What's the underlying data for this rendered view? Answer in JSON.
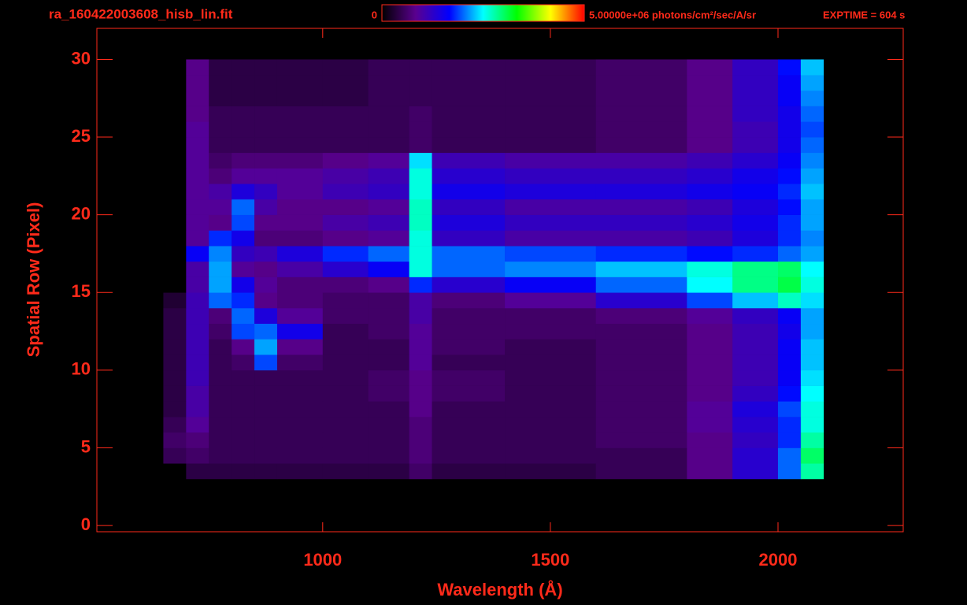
{
  "chart_data": {
    "type": "heatmap",
    "title": "ra_160422003608_hisb_lin.fit",
    "annotation": "EXPTIME = 604 s",
    "xlabel": "Wavelength (Å)",
    "ylabel": "Spatial Row (Pixel)",
    "xlim": [
      504,
      2275
    ],
    "xticks": [
      1000,
      1500,
      2000
    ],
    "ylim": [
      -0.4,
      32
    ],
    "yticks": [
      0,
      5,
      10,
      15,
      20,
      25,
      30
    ],
    "zlim": [
      0,
      5000000
    ],
    "zticks": [
      0,
      {
        "value": 5000000,
        "label": "5.00000e+06 photons/cm²/sec/A/sr"
      }
    ],
    "colorscale": [
      "#000000",
      "#5a008f",
      "#0000ff",
      "#00ffff",
      "#00ff00",
      "#ffff00",
      "#ff0000"
    ],
    "xbins": [
      650,
      700,
      750,
      800,
      850,
      900,
      1000,
      1100,
      1190,
      1240,
      1400,
      1600,
      1800,
      1900,
      2000,
      2050,
      2100
    ],
    "ybins": [
      3,
      4,
      5,
      6,
      7,
      8,
      9,
      10,
      11,
      12,
      13,
      14,
      15,
      16,
      17,
      18,
      19,
      20,
      21,
      22,
      23,
      24,
      25,
      26,
      27,
      28,
      29,
      30
    ],
    "z": [
      [
        0,
        400000.0,
        400000.0,
        400000.0,
        400000.0,
        400000.0,
        400000.0,
        400000.0,
        600000.0,
        400000.0,
        400000.0,
        500000.0,
        800000.0,
        1300000.0,
        2000000.0,
        2800000.0
      ],
      [
        500000.0,
        600000.0,
        500000.0,
        500000.0,
        500000.0,
        500000.0,
        500000.0,
        500000.0,
        700000.0,
        500000.0,
        500000.0,
        500000.0,
        800000.0,
        1300000.0,
        2000000.0,
        3000000.0
      ],
      [
        600000.0,
        700000.0,
        500000.0,
        500000.0,
        500000.0,
        500000.0,
        500000.0,
        500000.0,
        700000.0,
        500000.0,
        500000.0,
        600000.0,
        800000.0,
        1200000.0,
        1800000.0,
        2800000.0
      ],
      [
        500000.0,
        900000.0,
        500000.0,
        500000.0,
        500000.0,
        500000.0,
        500000.0,
        500000.0,
        700000.0,
        500000.0,
        500000.0,
        600000.0,
        900000.0,
        1300000.0,
        1800000.0,
        2600000.0
      ],
      [
        400000.0,
        1000000.0,
        500000.0,
        500000.0,
        500000.0,
        500000.0,
        500000.0,
        500000.0,
        800000.0,
        500000.0,
        500000.0,
        600000.0,
        900000.0,
        1400000.0,
        1900000.0,
        2600000.0
      ],
      [
        400000.0,
        1000000.0,
        500000.0,
        500000.0,
        500000.0,
        500000.0,
        500000.0,
        600000.0,
        800000.0,
        600000.0,
        500000.0,
        600000.0,
        800000.0,
        1200000.0,
        1700000.0,
        2500000.0
      ],
      [
        400000.0,
        1100000.0,
        500000.0,
        500000.0,
        500000.0,
        500000.0,
        500000.0,
        600000.0,
        800000.0,
        600000.0,
        500000.0,
        600000.0,
        800000.0,
        1100000.0,
        1600000.0,
        2400000.0
      ],
      [
        400000.0,
        1100000.0,
        500000.0,
        600000.0,
        1900000.0,
        600000.0,
        500000.0,
        500000.0,
        900000.0,
        500000.0,
        500000.0,
        600000.0,
        800000.0,
        1100000.0,
        1600000.0,
        2300000.0
      ],
      [
        400000.0,
        1100000.0,
        500000.0,
        800000.0,
        2200000.0,
        800000.0,
        500000.0,
        500000.0,
        900000.0,
        600000.0,
        500000.0,
        600000.0,
        800000.0,
        1100000.0,
        1600000.0,
        2300000.0
      ],
      [
        400000.0,
        1100000.0,
        600000.0,
        1900000.0,
        2000000.0,
        1500000.0,
        500000.0,
        600000.0,
        900000.0,
        600000.0,
        600000.0,
        600000.0,
        800000.0,
        1100000.0,
        1500000.0,
        2200000.0
      ],
      [
        400000.0,
        1100000.0,
        700000.0,
        2000000.0,
        1400000.0,
        900000.0,
        600000.0,
        600000.0,
        1000000.0,
        600000.0,
        600000.0,
        700000.0,
        900000.0,
        1200000.0,
        1600000.0,
        2200000.0
      ],
      [
        300000.0,
        1100000.0,
        2000000.0,
        1800000.0,
        800000.0,
        700000.0,
        600000.0,
        600000.0,
        1000000.0,
        700000.0,
        900000.0,
        1300000.0,
        1900000.0,
        2300000.0,
        2700000.0,
        2400000.0
      ],
      [
        0,
        1000000.0,
        2200000.0,
        1500000.0,
        900000.0,
        700000.0,
        700000.0,
        800000.0,
        1800000.0,
        1300000.0,
        1600000.0,
        2000000.0,
        2500000.0,
        2900000.0,
        3100000.0,
        2600000.0
      ],
      [
        0,
        1000000.0,
        2200000.0,
        900000.0,
        800000.0,
        1000000.0,
        1300000.0,
        1600000.0,
        2600000.0,
        2000000.0,
        2100000.0,
        2300000.0,
        2600000.0,
        2900000.0,
        3000000.0,
        2500000.0
      ],
      [
        0,
        1600000.0,
        2100000.0,
        1200000.0,
        1100000.0,
        1400000.0,
        1800000.0,
        2000000.0,
        2600000.0,
        2000000.0,
        1900000.0,
        1800000.0,
        1700000.0,
        1800000.0,
        2000000.0,
        2200000.0
      ],
      [
        0,
        900000.0,
        1800000.0,
        1500000.0,
        700000.0,
        700000.0,
        800000.0,
        900000.0,
        2600000.0,
        1200000.0,
        1000000.0,
        1000000.0,
        1100000.0,
        1400000.0,
        1800000.0,
        2100000.0
      ],
      [
        0,
        900000.0,
        800000.0,
        1900000.0,
        800000.0,
        800000.0,
        1000000.0,
        1100000.0,
        2700000.0,
        1400000.0,
        1200000.0,
        1200000.0,
        1300000.0,
        1500000.0,
        1800000.0,
        2200000.0
      ],
      [
        0,
        900000.0,
        900000.0,
        2000000.0,
        1000000.0,
        800000.0,
        800000.0,
        900000.0,
        2700000.0,
        1200000.0,
        1000000.0,
        1000000.0,
        1100000.0,
        1400000.0,
        1700000.0,
        2200000.0
      ],
      [
        0,
        900000.0,
        1000000.0,
        1400000.0,
        1200000.0,
        900000.0,
        1100000.0,
        1200000.0,
        2600000.0,
        1500000.0,
        1400000.0,
        1400000.0,
        1500000.0,
        1600000.0,
        1800000.0,
        2300000.0
      ],
      [
        0,
        900000.0,
        700000.0,
        900000.0,
        900000.0,
        900000.0,
        1000000.0,
        1100000.0,
        2600000.0,
        1300000.0,
        1200000.0,
        1200000.0,
        1300000.0,
        1500000.0,
        1700000.0,
        2200000.0
      ],
      [
        0,
        900000.0,
        600000.0,
        700000.0,
        700000.0,
        700000.0,
        800000.0,
        900000.0,
        2400000.0,
        1100000.0,
        1000000.0,
        1000000.0,
        1100000.0,
        1300000.0,
        1600000.0,
        2100000.0
      ],
      [
        0,
        900000.0,
        500000.0,
        500000.0,
        500000.0,
        500000.0,
        500000.0,
        500000.0,
        600000.0,
        500000.0,
        500000.0,
        600000.0,
        800000.0,
        1100000.0,
        1500000.0,
        2000000.0
      ],
      [
        0,
        900000.0,
        500000.0,
        500000.0,
        500000.0,
        500000.0,
        500000.0,
        500000.0,
        600000.0,
        500000.0,
        500000.0,
        600000.0,
        800000.0,
        1100000.0,
        1500000.0,
        1900000.0
      ],
      [
        0,
        800000.0,
        500000.0,
        500000.0,
        500000.0,
        500000.0,
        500000.0,
        500000.0,
        600000.0,
        500000.0,
        500000.0,
        600000.0,
        800000.0,
        1200000.0,
        1500000.0,
        2000000.0
      ],
      [
        0,
        800000.0,
        400000.0,
        400000.0,
        400000.0,
        400000.0,
        400000.0,
        500000.0,
        500000.0,
        500000.0,
        500000.0,
        600000.0,
        800000.0,
        1200000.0,
        1600000.0,
        2100000.0
      ],
      [
        0,
        800000.0,
        400000.0,
        400000.0,
        400000.0,
        400000.0,
        400000.0,
        500000.0,
        500000.0,
        500000.0,
        500000.0,
        600000.0,
        800000.0,
        1200000.0,
        1600000.0,
        2200000.0
      ],
      [
        0,
        800000.0,
        400000.0,
        400000.0,
        400000.0,
        400000.0,
        400000.0,
        500000.0,
        500000.0,
        500000.0,
        500000.0,
        600000.0,
        800000.0,
        1200000.0,
        1700000.0,
        2300000.0
      ]
    ]
  }
}
